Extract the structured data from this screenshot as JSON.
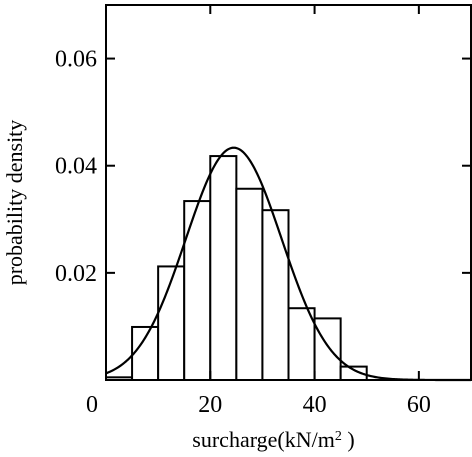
{
  "chart_data": {
    "type": "bar",
    "subtype": "histogram-with-normal-curve",
    "xlabel": "surcharge(kN/m",
    "xlabel_sup": "2",
    "xlabel_tail": " )",
    "ylabel": "probability density",
    "xlim": [
      0,
      70
    ],
    "ylim": [
      0,
      0.07
    ],
    "xticks": [
      0,
      20,
      40,
      60
    ],
    "xtick_labels": [
      "0",
      "20",
      "40",
      "60"
    ],
    "yticks": [
      0.02,
      0.04,
      0.06
    ],
    "ytick_labels": [
      "0.02",
      "0.04",
      "0.06"
    ],
    "bin_width": 5,
    "bins": [
      {
        "x0": 0,
        "x1": 5,
        "value": 0.0005
      },
      {
        "x0": 5,
        "x1": 10,
        "value": 0.0099
      },
      {
        "x0": 10,
        "x1": 15,
        "value": 0.0212
      },
      {
        "x0": 15,
        "x1": 20,
        "value": 0.0334
      },
      {
        "x0": 20,
        "x1": 25,
        "value": 0.0418
      },
      {
        "x0": 25,
        "x1": 30,
        "value": 0.0357
      },
      {
        "x0": 30,
        "x1": 35,
        "value": 0.0317
      },
      {
        "x0": 35,
        "x1": 40,
        "value": 0.0134
      },
      {
        "x0": 40,
        "x1": 45,
        "value": 0.0115
      },
      {
        "x0": 45,
        "x1": 50,
        "value": 0.0025
      }
    ],
    "fitted_curve": {
      "type": "normal",
      "mean": 24.5,
      "sd": 9.2
    },
    "grid": false
  }
}
